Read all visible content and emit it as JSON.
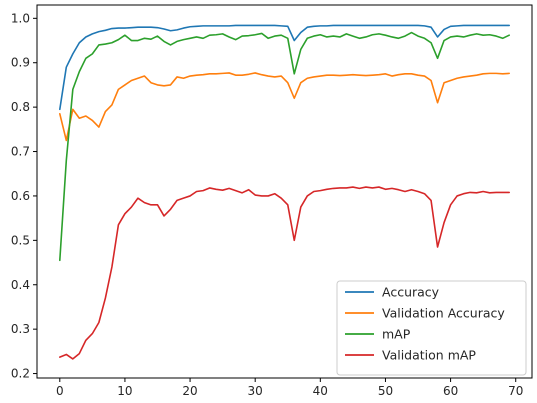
{
  "chart_data": {
    "type": "line",
    "title": "",
    "xlabel": "",
    "ylabel": "",
    "xlim": [
      -3.5,
      72.5
    ],
    "ylim": [
      0.19,
      1.03
    ],
    "x_ticks": [
      0,
      10,
      20,
      30,
      40,
      50,
      60,
      70
    ],
    "y_ticks": [
      0.2,
      0.3,
      0.4,
      0.5,
      0.6,
      0.7,
      0.8,
      0.9,
      1.0
    ],
    "x_tick_labels": [
      "0",
      "10",
      "20",
      "30",
      "40",
      "50",
      "60",
      "70"
    ],
    "y_tick_labels": [
      "0.2",
      "0.3",
      "0.4",
      "0.5",
      "0.6",
      "0.7",
      "0.8",
      "0.9",
      "1.0"
    ],
    "grid": false,
    "legend_position": "lower-right",
    "x": [
      0,
      1,
      2,
      3,
      4,
      5,
      6,
      7,
      8,
      9,
      10,
      11,
      12,
      13,
      14,
      15,
      16,
      17,
      18,
      19,
      20,
      21,
      22,
      23,
      24,
      25,
      26,
      27,
      28,
      29,
      30,
      31,
      32,
      33,
      34,
      35,
      36,
      37,
      38,
      39,
      40,
      41,
      42,
      43,
      44,
      45,
      46,
      47,
      48,
      49,
      50,
      51,
      52,
      53,
      54,
      55,
      56,
      57,
      58,
      59,
      60,
      61,
      62,
      63,
      64,
      65,
      66,
      67,
      68,
      69
    ],
    "series": [
      {
        "name": "Accuracy",
        "color": "#1f77b4",
        "values": [
          0.795,
          0.89,
          0.92,
          0.945,
          0.958,
          0.965,
          0.97,
          0.973,
          0.977,
          0.978,
          0.978,
          0.979,
          0.98,
          0.98,
          0.98,
          0.979,
          0.976,
          0.972,
          0.974,
          0.978,
          0.981,
          0.982,
          0.983,
          0.983,
          0.983,
          0.983,
          0.983,
          0.984,
          0.984,
          0.984,
          0.984,
          0.984,
          0.984,
          0.984,
          0.983,
          0.982,
          0.95,
          0.968,
          0.98,
          0.982,
          0.983,
          0.983,
          0.984,
          0.984,
          0.984,
          0.984,
          0.984,
          0.984,
          0.984,
          0.984,
          0.984,
          0.984,
          0.984,
          0.984,
          0.984,
          0.984,
          0.983,
          0.98,
          0.958,
          0.975,
          0.982,
          0.983,
          0.984,
          0.984,
          0.984,
          0.984,
          0.984,
          0.984,
          0.984,
          0.984
        ]
      },
      {
        "name": "Validation Accuracy",
        "color": "#ff7f0e",
        "values": [
          0.785,
          0.725,
          0.795,
          0.775,
          0.78,
          0.77,
          0.755,
          0.79,
          0.805,
          0.84,
          0.85,
          0.86,
          0.865,
          0.87,
          0.855,
          0.85,
          0.848,
          0.85,
          0.868,
          0.865,
          0.87,
          0.872,
          0.873,
          0.875,
          0.875,
          0.876,
          0.877,
          0.872,
          0.872,
          0.874,
          0.877,
          0.873,
          0.87,
          0.868,
          0.87,
          0.855,
          0.82,
          0.855,
          0.865,
          0.868,
          0.87,
          0.872,
          0.872,
          0.871,
          0.872,
          0.873,
          0.872,
          0.871,
          0.872,
          0.873,
          0.875,
          0.87,
          0.873,
          0.875,
          0.875,
          0.872,
          0.87,
          0.86,
          0.81,
          0.855,
          0.86,
          0.865,
          0.868,
          0.87,
          0.872,
          0.875,
          0.876,
          0.876,
          0.875,
          0.876
        ]
      },
      {
        "name": "mAP",
        "color": "#2ca02c",
        "values": [
          0.455,
          0.68,
          0.84,
          0.88,
          0.91,
          0.92,
          0.94,
          0.942,
          0.945,
          0.952,
          0.962,
          0.95,
          0.95,
          0.955,
          0.953,
          0.96,
          0.948,
          0.94,
          0.948,
          0.952,
          0.955,
          0.958,
          0.955,
          0.962,
          0.963,
          0.965,
          0.958,
          0.952,
          0.96,
          0.961,
          0.963,
          0.966,
          0.955,
          0.96,
          0.962,
          0.955,
          0.875,
          0.93,
          0.955,
          0.96,
          0.963,
          0.958,
          0.96,
          0.958,
          0.965,
          0.96,
          0.955,
          0.958,
          0.963,
          0.965,
          0.962,
          0.958,
          0.955,
          0.96,
          0.968,
          0.96,
          0.955,
          0.945,
          0.91,
          0.95,
          0.958,
          0.96,
          0.958,
          0.962,
          0.965,
          0.962,
          0.963,
          0.96,
          0.955,
          0.962
        ]
      },
      {
        "name": "Validation mAP",
        "color": "#d62728",
        "values": [
          0.237,
          0.243,
          0.233,
          0.245,
          0.275,
          0.29,
          0.315,
          0.37,
          0.44,
          0.535,
          0.56,
          0.575,
          0.595,
          0.585,
          0.58,
          0.58,
          0.555,
          0.57,
          0.59,
          0.595,
          0.6,
          0.61,
          0.612,
          0.618,
          0.615,
          0.613,
          0.617,
          0.612,
          0.607,
          0.614,
          0.602,
          0.6,
          0.6,
          0.605,
          0.595,
          0.58,
          0.5,
          0.575,
          0.6,
          0.61,
          0.612,
          0.615,
          0.617,
          0.618,
          0.618,
          0.62,
          0.617,
          0.62,
          0.618,
          0.62,
          0.615,
          0.617,
          0.614,
          0.61,
          0.614,
          0.61,
          0.605,
          0.59,
          0.485,
          0.54,
          0.58,
          0.6,
          0.605,
          0.608,
          0.607,
          0.61,
          0.607,
          0.608,
          0.608,
          0.608
        ]
      }
    ]
  }
}
